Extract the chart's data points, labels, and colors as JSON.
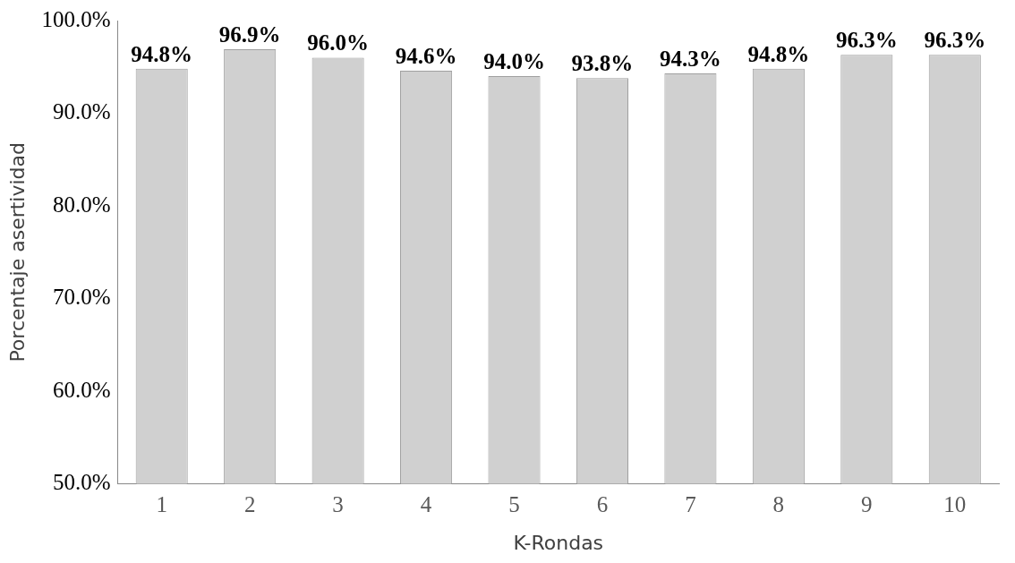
{
  "chart_data": {
    "type": "bar",
    "xlabel": "K-Rondas",
    "ylabel": "Porcentaje asertividad",
    "categories": [
      "1",
      "2",
      "3",
      "4",
      "5",
      "6",
      "7",
      "8",
      "9",
      "10"
    ],
    "values": [
      94.8,
      96.9,
      96.0,
      94.6,
      94.0,
      93.8,
      94.3,
      94.8,
      96.3,
      96.3
    ],
    "value_labels": [
      "94.8%",
      "96.9%",
      "96.0%",
      "94.6%",
      "94.0%",
      "93.8%",
      "94.3%",
      "94.8%",
      "96.3%",
      "96.3%"
    ],
    "color": "#d0d0d0",
    "ylim": [
      50,
      100
    ],
    "yticks": [
      {
        "value": 50,
        "label": "50.0%"
      },
      {
        "value": 60,
        "label": "60.0%"
      },
      {
        "value": 70,
        "label": "70.0%"
      },
      {
        "value": 80,
        "label": "80.0%"
      },
      {
        "value": 90,
        "label": "90.0%"
      },
      {
        "value": 100,
        "label": "100.0%"
      }
    ],
    "grid": false,
    "legend": false
  }
}
